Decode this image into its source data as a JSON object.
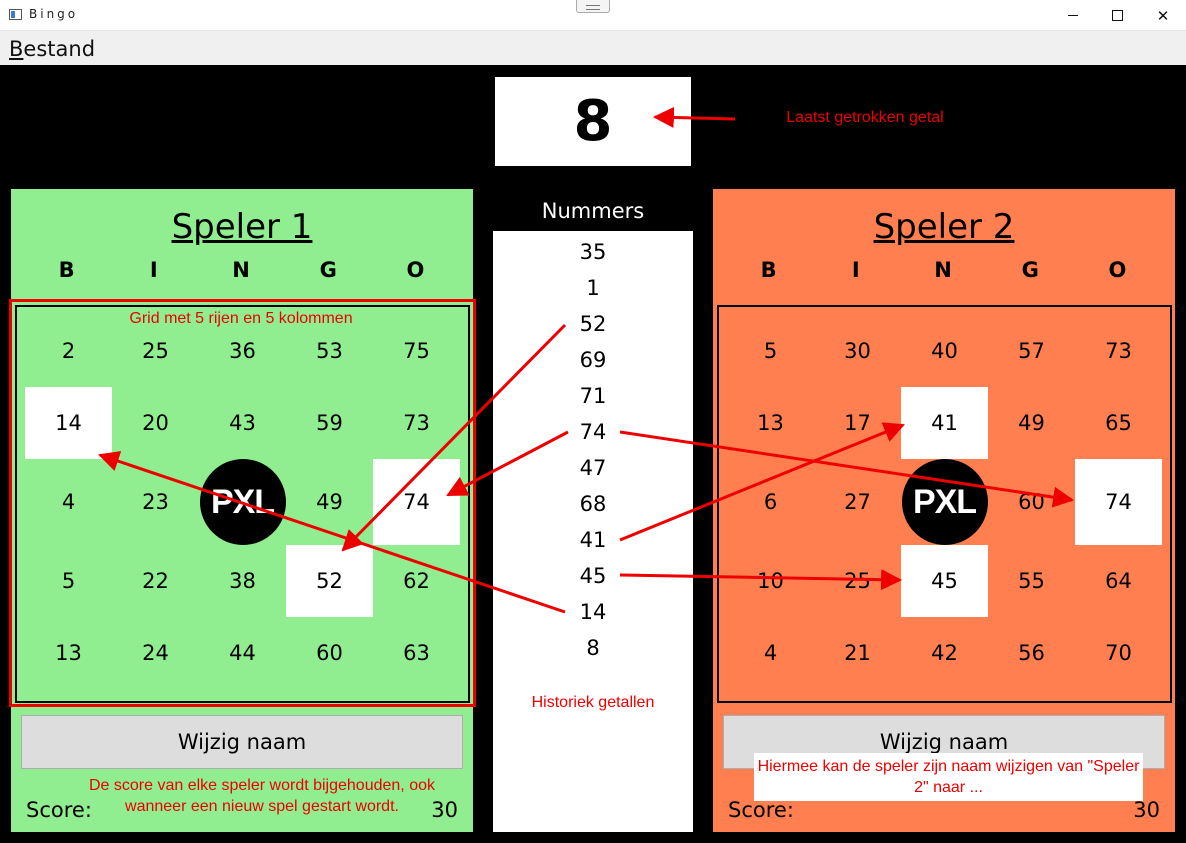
{
  "window": {
    "title": "Bingo",
    "close_glyph": "✕"
  },
  "menu": {
    "items": [
      "Bestand"
    ]
  },
  "last_number": "8",
  "annotations": {
    "last_number": "Laatst getrokken getal",
    "grid": "Grid met 5 rijen en 5 kolommen",
    "history": "Historiek getallen",
    "score": "De score van elke speler wordt bijgehouden, ook wanneer een nieuw spel gestart wordt.",
    "rename": "Hiermee kan de speler zijn naam wijzigen van \"Speler 2\" naar ..."
  },
  "letters": [
    "B",
    "I",
    "N",
    "G",
    "O"
  ],
  "players": [
    {
      "name": "Speler 1",
      "color": "#90ee90",
      "grid": [
        [
          "2",
          "25",
          "36",
          "53",
          "75"
        ],
        [
          "14",
          "20",
          "43",
          "59",
          "73"
        ],
        [
          "4",
          "23",
          "",
          "49",
          "74"
        ],
        [
          "5",
          "22",
          "38",
          "52",
          "62"
        ],
        [
          "13",
          "24",
          "44",
          "60",
          "63"
        ]
      ],
      "marked": [
        "1-0",
        "2-4",
        "3-3"
      ],
      "button_label": "Wijzig naam",
      "score_label": "Score:",
      "score": "30"
    },
    {
      "name": "Speler 2",
      "color": "#ff7f50",
      "grid": [
        [
          "5",
          "30",
          "40",
          "57",
          "73"
        ],
        [
          "13",
          "17",
          "41",
          "49",
          "65"
        ],
        [
          "6",
          "27",
          "",
          "60",
          "74"
        ],
        [
          "10",
          "25",
          "45",
          "55",
          "64"
        ],
        [
          "4",
          "21",
          "42",
          "56",
          "70"
        ]
      ],
      "marked": [
        "1-2",
        "2-4",
        "3-2"
      ],
      "button_label": "Wijzig naam",
      "score_label": "Score:",
      "score": "30"
    }
  ],
  "logo_text": "PXL",
  "history": {
    "header": "Nummers",
    "numbers": [
      "35",
      "1",
      "52",
      "69",
      "71",
      "74",
      "47",
      "68",
      "41",
      "45",
      "14",
      "8"
    ]
  }
}
